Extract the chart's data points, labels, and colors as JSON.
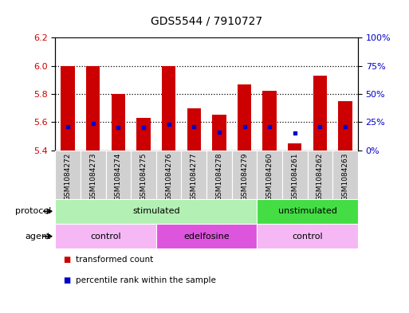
{
  "title": "GDS5544 / 7910727",
  "samples": [
    "GSM1084272",
    "GSM1084273",
    "GSM1084274",
    "GSM1084275",
    "GSM1084276",
    "GSM1084277",
    "GSM1084278",
    "GSM1084279",
    "GSM1084260",
    "GSM1084261",
    "GSM1084262",
    "GSM1084263"
  ],
  "bar_tops": [
    6.0,
    6.0,
    5.8,
    5.63,
    6.0,
    5.7,
    5.65,
    5.87,
    5.82,
    5.45,
    5.93,
    5.75
  ],
  "bar_bottoms": [
    5.4,
    5.4,
    5.4,
    5.4,
    5.4,
    5.4,
    5.4,
    5.4,
    5.4,
    5.4,
    5.4,
    5.4
  ],
  "blue_dot_vals": [
    5.57,
    5.59,
    5.56,
    5.56,
    5.585,
    5.565,
    5.53,
    5.57,
    5.565,
    5.525,
    5.565,
    5.565
  ],
  "ylim_left": [
    5.4,
    6.2
  ],
  "ylim_right": [
    0,
    100
  ],
  "yticks_left": [
    5.4,
    5.6,
    5.8,
    6.0,
    6.2
  ],
  "yticks_right": [
    0,
    25,
    50,
    75,
    100
  ],
  "ytick_labels_right": [
    "0%",
    "25%",
    "50%",
    "75%",
    "100%"
  ],
  "bar_color": "#cc0000",
  "dot_color": "#0000cc",
  "protocol_groups": [
    {
      "label": "stimulated",
      "start": 0,
      "end": 8,
      "color": "#b3f0b3"
    },
    {
      "label": "unstimulated",
      "start": 8,
      "end": 12,
      "color": "#44dd44"
    }
  ],
  "agent_groups": [
    {
      "label": "control",
      "start": 0,
      "end": 4,
      "color": "#f5b8f5"
    },
    {
      "label": "edelfosine",
      "start": 4,
      "end": 8,
      "color": "#dd55dd"
    },
    {
      "label": "control",
      "start": 8,
      "end": 12,
      "color": "#f5b8f5"
    }
  ],
  "legend_items": [
    {
      "label": "transformed count",
      "color": "#cc0000"
    },
    {
      "label": "percentile rank within the sample",
      "color": "#0000cc"
    }
  ],
  "label_color_left": "#cc0000",
  "label_color_right": "#0000cc",
  "xtick_bg_color": "#d0d0d0",
  "dotted_grid_vals": [
    5.6,
    5.8,
    6.0
  ]
}
